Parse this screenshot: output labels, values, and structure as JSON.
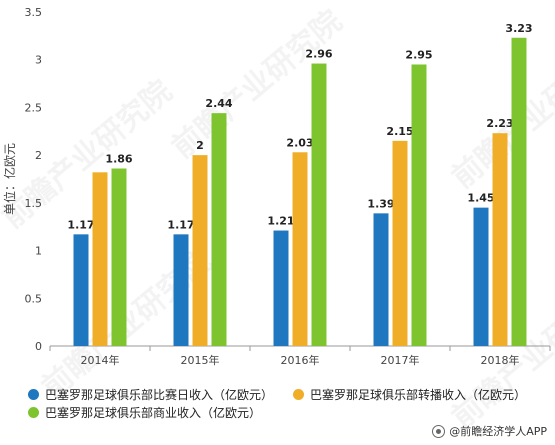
{
  "watermark": "前瞻产业研究院",
  "credit": "@前瞻经济学人APP",
  "chart_data": {
    "type": "bar",
    "ylabel": "单位：亿欧元",
    "ylim": [
      0,
      3.5
    ],
    "yticks": [
      "0",
      "0.5",
      "1",
      "1.5",
      "2",
      "2.5",
      "3",
      "3.5"
    ],
    "categories": [
      "2014年",
      "2015年",
      "2016年",
      "2017年",
      "2018年"
    ],
    "series": [
      {
        "name": "巴塞罗那足球俱乐部比赛日收入（亿欧元）",
        "color": "#1f77bf",
        "values": [
          1.17,
          1.17,
          1.21,
          1.39,
          1.45
        ],
        "labels": [
          "1.17",
          "1.17",
          "1.21",
          "1.39",
          "1.45"
        ]
      },
      {
        "name": "巴塞罗那足球俱乐部转播收入（亿欧元）",
        "color": "#f0ad28",
        "values": [
          1.82,
          2.0,
          2.03,
          2.15,
          2.23
        ],
        "labels": [
          "",
          "2",
          "2.03",
          "2.15",
          "2.23"
        ]
      },
      {
        "name": "巴塞罗那足球俱乐部商业收入（亿欧元）",
        "color": "#7dc42e",
        "values": [
          1.86,
          2.44,
          2.96,
          2.95,
          3.23
        ],
        "labels": [
          "1.86",
          "2.44",
          "2.96",
          "2.95",
          "3.23"
        ]
      }
    ],
    "grid": false,
    "legend": "bottom"
  }
}
